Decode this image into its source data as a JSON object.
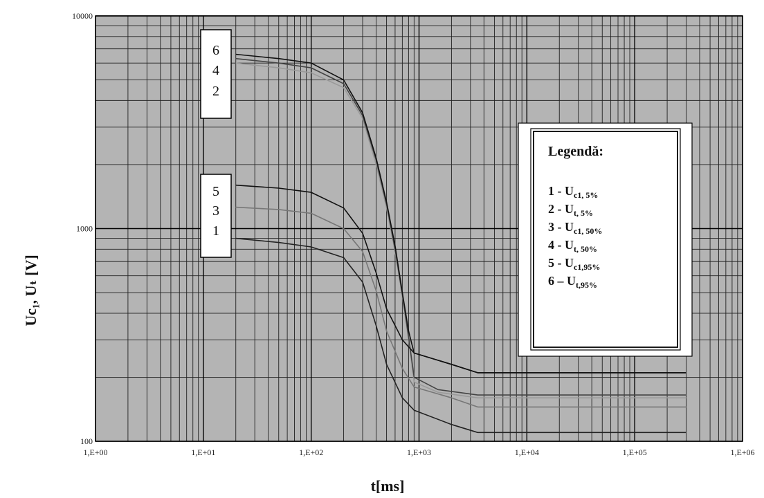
{
  "chart_data": {
    "type": "line",
    "xlabel": "t[ms]",
    "ylabel": "Uc₁, Uₜ [V]",
    "x_scale": "log",
    "y_scale": "log",
    "xlim": [
      1,
      1000000
    ],
    "ylim": [
      100,
      10000
    ],
    "x_tick_labels": [
      "1,E+00",
      "1,E+01",
      "1,E+02",
      "1,E+03",
      "1,E+04",
      "1,E+05",
      "1,E+06"
    ],
    "y_tick_labels": [
      "100",
      "1000",
      "10000"
    ],
    "grid": true,
    "series": [
      {
        "name": "1",
        "color": "#222222",
        "points": [
          [
            20,
            900
          ],
          [
            50,
            860
          ],
          [
            100,
            820
          ],
          [
            200,
            730
          ],
          [
            300,
            560
          ],
          [
            400,
            350
          ],
          [
            500,
            230
          ],
          [
            700,
            160
          ],
          [
            900,
            140
          ],
          [
            2000,
            120
          ],
          [
            3500,
            110
          ],
          [
            300000,
            110
          ]
        ]
      },
      {
        "name": "2",
        "color": "#9a9a9a",
        "points": [
          [
            20,
            6000
          ],
          [
            50,
            5700
          ],
          [
            100,
            5400
          ],
          [
            200,
            4600
          ],
          [
            300,
            3300
          ],
          [
            400,
            2000
          ],
          [
            500,
            1250
          ],
          [
            600,
            780
          ],
          [
            700,
            480
          ],
          [
            800,
            300
          ],
          [
            900,
            190
          ],
          [
            1500,
            170
          ],
          [
            3500,
            160
          ],
          [
            300000,
            160
          ]
        ]
      },
      {
        "name": "3",
        "color": "#777777",
        "points": [
          [
            20,
            1260
          ],
          [
            50,
            1230
          ],
          [
            100,
            1180
          ],
          [
            200,
            1000
          ],
          [
            300,
            780
          ],
          [
            400,
            510
          ],
          [
            500,
            330
          ],
          [
            700,
            220
          ],
          [
            900,
            180
          ],
          [
            2000,
            160
          ],
          [
            3500,
            145
          ],
          [
            300000,
            145
          ]
        ]
      },
      {
        "name": "4",
        "color": "#444444",
        "points": [
          [
            20,
            6300
          ],
          [
            50,
            6000
          ],
          [
            100,
            5700
          ],
          [
            200,
            4800
          ],
          [
            300,
            3400
          ],
          [
            400,
            2100
          ],
          [
            500,
            1300
          ],
          [
            600,
            800
          ],
          [
            700,
            490
          ],
          [
            800,
            310
          ],
          [
            900,
            200
          ],
          [
            1500,
            175
          ],
          [
            3500,
            165
          ],
          [
            300000,
            165
          ]
        ]
      },
      {
        "name": "5",
        "color": "#111111",
        "points": [
          [
            20,
            1600
          ],
          [
            50,
            1550
          ],
          [
            100,
            1480
          ],
          [
            200,
            1250
          ],
          [
            300,
            950
          ],
          [
            400,
            620
          ],
          [
            500,
            420
          ],
          [
            700,
            300
          ],
          [
            900,
            260
          ],
          [
            2000,
            230
          ],
          [
            3500,
            210
          ],
          [
            300000,
            210
          ]
        ]
      },
      {
        "name": "6",
        "color": "#111111",
        "points": [
          [
            20,
            6600
          ],
          [
            50,
            6300
          ],
          [
            100,
            6000
          ],
          [
            200,
            5000
          ],
          [
            300,
            3500
          ],
          [
            400,
            2150
          ],
          [
            500,
            1330
          ],
          [
            600,
            830
          ],
          [
            700,
            500
          ],
          [
            800,
            330
          ],
          [
            900,
            260
          ],
          [
            2000,
            230
          ],
          [
            3500,
            210
          ],
          [
            300000,
            210
          ]
        ]
      }
    ],
    "curve_labels": {
      "upper": [
        "6",
        "4",
        "2"
      ],
      "lower": [
        "5",
        "3",
        "1"
      ]
    },
    "legend": {
      "title": "Legendă:",
      "entries": [
        {
          "num": "1 - U",
          "sub": "c1, 5%"
        },
        {
          "num": "2 - U",
          "sub": "t, 5%"
        },
        {
          "num": "3 - U",
          "sub": "c1, 50%"
        },
        {
          "num": "4 - U",
          "sub": "t, 50%"
        },
        {
          "num": "5 - U",
          "sub": "c1,95%"
        },
        {
          "num": "6 – U",
          "sub": "t,95%"
        }
      ]
    }
  }
}
